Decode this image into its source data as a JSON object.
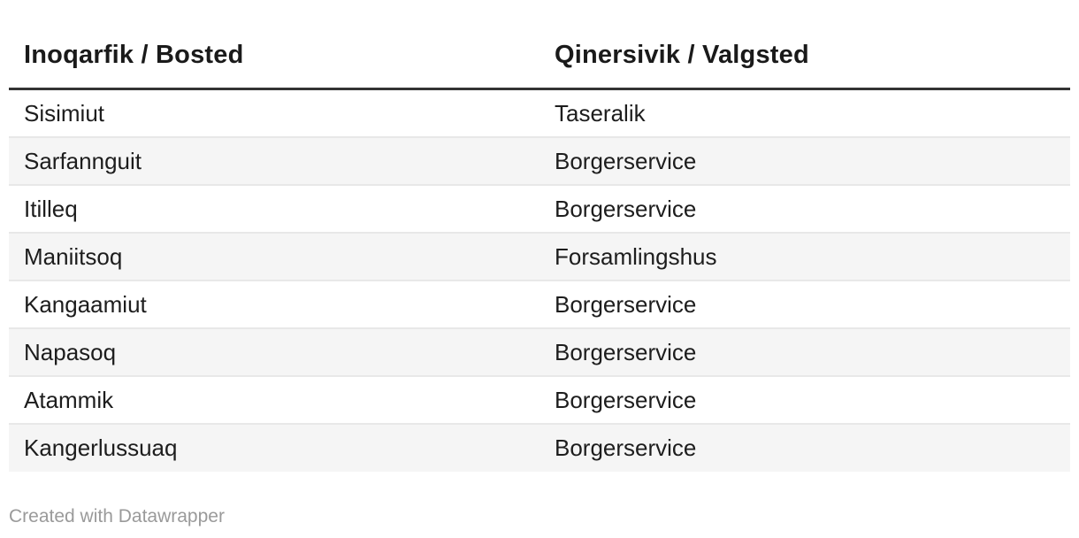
{
  "chart_data": {
    "type": "table",
    "columns": [
      "Inoqarfik / Bosted",
      "Qinersivik / Valgsted"
    ],
    "rows": [
      [
        "Sisimiut",
        "Taseralik"
      ],
      [
        "Sarfannguit",
        "Borgerservice"
      ],
      [
        "Itilleq",
        "Borgerservice"
      ],
      [
        "Maniitsoq",
        "Forsamlingshus"
      ],
      [
        "Kangaamiut",
        "Borgerservice"
      ],
      [
        "Napasoq",
        "Borgerservice"
      ],
      [
        "Atammik",
        "Borgerservice"
      ],
      [
        "Kangerlussuaq",
        "Borgerservice"
      ]
    ],
    "title": "",
    "legend_position": "none",
    "grid": "zebra-rows"
  },
  "footer": {
    "attribution": "Created with Datawrapper"
  },
  "colors": {
    "header_text": "#1a1a1a",
    "body_text": "#1d1d1d",
    "header_rule": "#333333",
    "row_alt_bg": "#f5f5f5",
    "row_border": "#e8e8e8",
    "footer_text": "#9a9a9a",
    "background": "#ffffff"
  }
}
